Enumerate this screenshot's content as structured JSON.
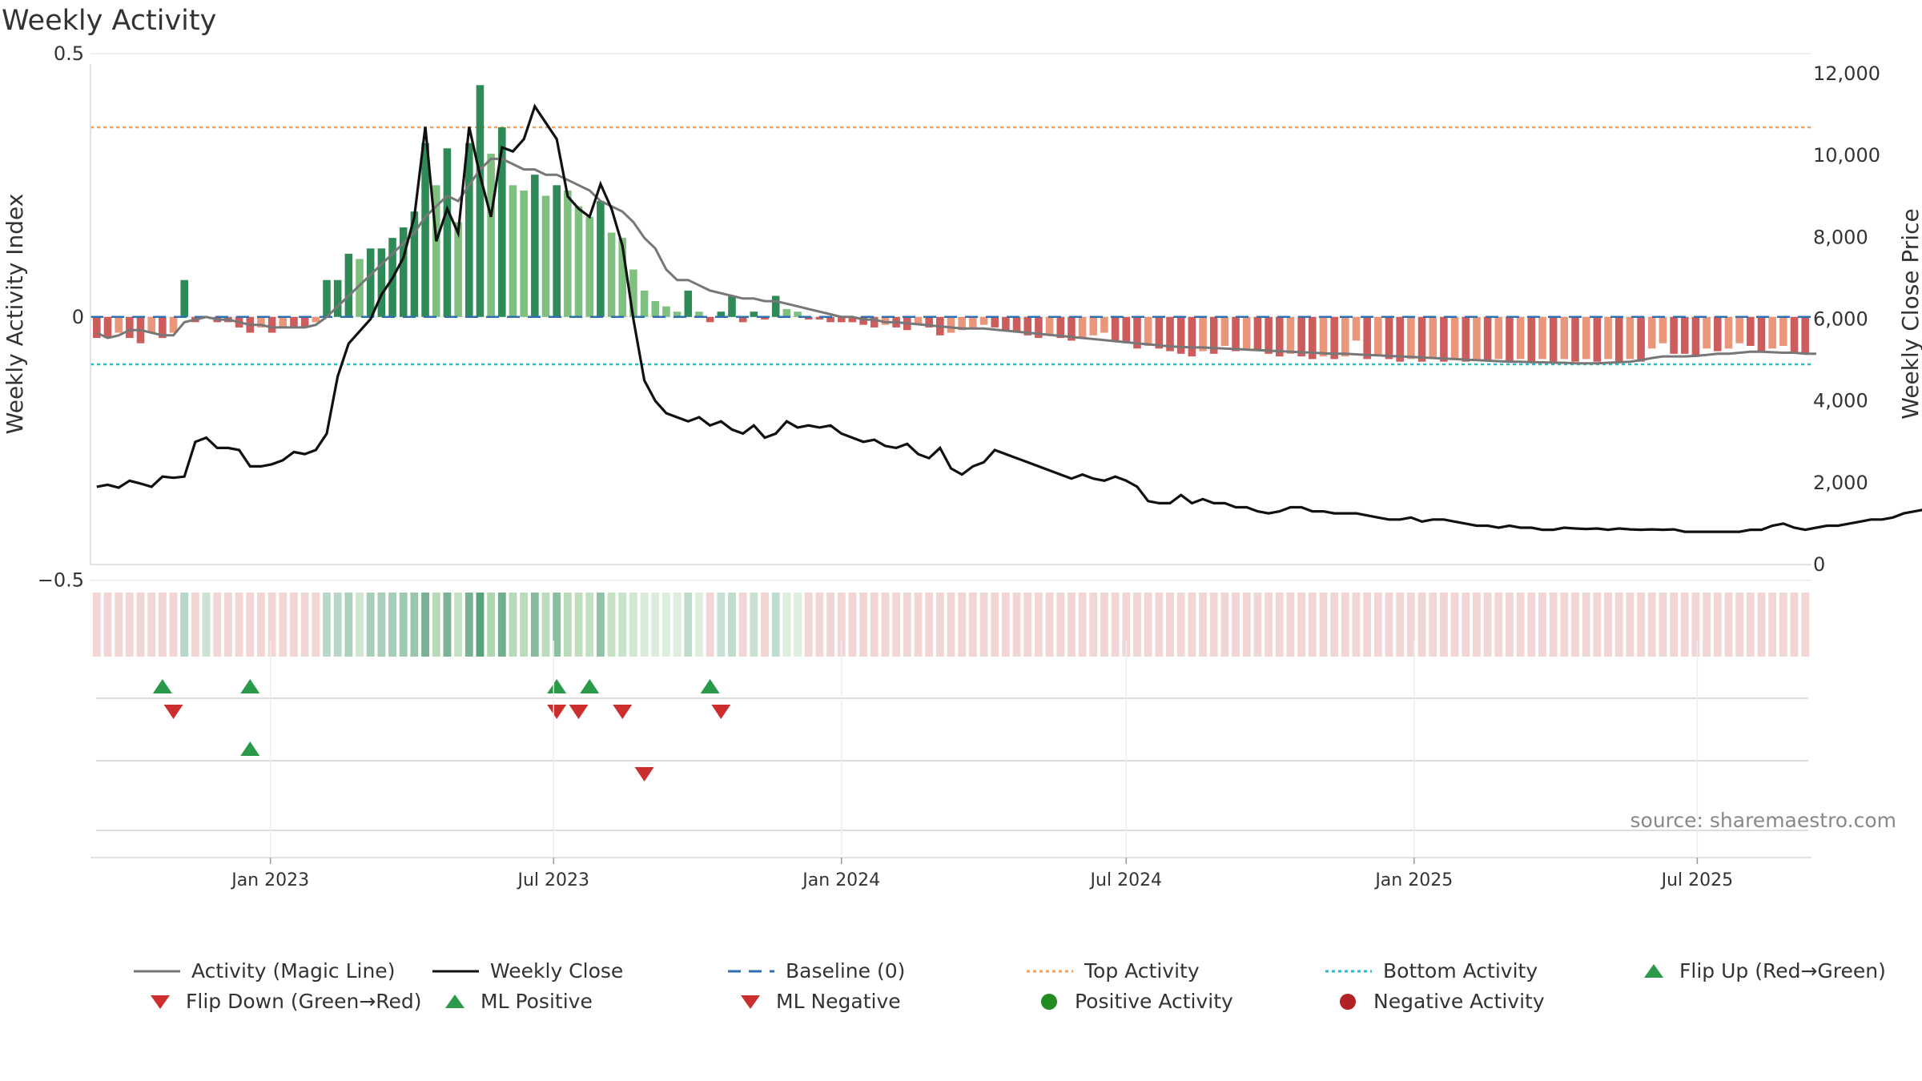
{
  "title": "Weekly Activity",
  "source": "source: sharemaestro.com",
  "colors": {
    "pos_dark": "#2e8b57",
    "pos_light": "#7fbf7f",
    "neg_dark": "#cd5c5c",
    "neg_light": "#e9967a",
    "magic": "#777777",
    "close": "#111111",
    "baseline": "#2f6fb0",
    "top": "#f0a060",
    "bottom": "#28b8cc",
    "flip_up": "#2a9a4a",
    "flip_down": "#cc2e2e"
  },
  "chart_data": {
    "type": "bar",
    "x_start": "2022-09-12",
    "x_interval_days": 7,
    "left_axis": {
      "label": "Weekly Activity Index",
      "ticks": [
        0.5,
        0,
        -0.5
      ],
      "tick_labels": [
        "0.5",
        "0",
        "−0.5"
      ],
      "ylim": [
        -0.47,
        0.48
      ]
    },
    "right_axis": {
      "label": "Weekly Close Price",
      "ticks": [
        0,
        2000,
        4000,
        6000,
        8000,
        10000,
        12000
      ],
      "tick_labels": [
        "0",
        "2,000",
        "4,000",
        "6,000",
        "8,000",
        "10,000",
        "12,000"
      ],
      "ylim": [
        0,
        12000
      ]
    },
    "x_ticks": [
      {
        "date": "2023-01-01",
        "label": "Jan 2023"
      },
      {
        "date": "2023-07-01",
        "label": "Jul 2023"
      },
      {
        "date": "2024-01-01",
        "label": "Jan 2024"
      },
      {
        "date": "2024-07-01",
        "label": "Jul 2024"
      },
      {
        "date": "2025-01-01",
        "label": "Jan 2025"
      },
      {
        "date": "2025-07-01",
        "label": "Jul 2025"
      }
    ],
    "top_activity": 0.36,
    "bottom_activity": -0.09,
    "activity": [
      -0.04,
      -0.04,
      -0.03,
      -0.04,
      -0.05,
      -0.03,
      -0.04,
      -0.03,
      0.07,
      -0.01,
      0.0,
      -0.01,
      -0.01,
      -0.02,
      -0.03,
      -0.02,
      -0.03,
      -0.02,
      -0.02,
      -0.02,
      -0.01,
      0.07,
      0.07,
      0.12,
      0.11,
      0.13,
      0.13,
      0.15,
      0.17,
      0.2,
      0.33,
      0.25,
      0.32,
      0.18,
      0.33,
      0.44,
      0.31,
      0.36,
      0.25,
      0.24,
      0.27,
      0.23,
      0.25,
      0.24,
      0.21,
      0.19,
      0.22,
      0.16,
      0.15,
      0.09,
      0.05,
      0.03,
      0.02,
      0.01,
      0.05,
      0.01,
      -0.01,
      0.01,
      0.04,
      -0.01,
      0.01,
      -0.005,
      0.04,
      0.015,
      0.01,
      -0.005,
      -0.005,
      -0.01,
      -0.01,
      -0.01,
      -0.015,
      -0.02,
      -0.015,
      -0.02,
      -0.025,
      -0.015,
      -0.02,
      -0.035,
      -0.03,
      -0.025,
      -0.02,
      -0.015,
      -0.02,
      -0.025,
      -0.03,
      -0.035,
      -0.04,
      -0.035,
      -0.04,
      -0.045,
      -0.04,
      -0.035,
      -0.03,
      -0.045,
      -0.05,
      -0.06,
      -0.055,
      -0.06,
      -0.065,
      -0.07,
      -0.075,
      -0.065,
      -0.07,
      -0.055,
      -0.065,
      -0.06,
      -0.065,
      -0.07,
      -0.075,
      -0.07,
      -0.075,
      -0.08,
      -0.075,
      -0.08,
      -0.075,
      -0.045,
      -0.08,
      -0.075,
      -0.08,
      -0.085,
      -0.08,
      -0.085,
      -0.08,
      -0.085,
      -0.08,
      -0.085,
      -0.08,
      -0.085,
      -0.08,
      -0.085,
      -0.08,
      -0.085,
      -0.08,
      -0.085,
      -0.08,
      -0.085,
      -0.08,
      -0.085,
      -0.08,
      -0.085,
      -0.08,
      -0.085,
      -0.06,
      -0.05,
      -0.07,
      -0.07,
      -0.075,
      -0.06,
      -0.065,
      -0.06,
      -0.05,
      -0.055,
      -0.065,
      -0.06,
      -0.055,
      -0.07,
      -0.07
    ],
    "magic_line": [
      -0.03,
      -0.04,
      -0.035,
      -0.025,
      -0.025,
      -0.03,
      -0.035,
      -0.035,
      -0.01,
      -0.005,
      0.0,
      -0.005,
      -0.005,
      -0.01,
      -0.015,
      -0.015,
      -0.02,
      -0.02,
      -0.02,
      -0.02,
      -0.015,
      0.0,
      0.02,
      0.04,
      0.06,
      0.08,
      0.1,
      0.12,
      0.14,
      0.16,
      0.19,
      0.21,
      0.23,
      0.22,
      0.25,
      0.28,
      0.3,
      0.3,
      0.29,
      0.28,
      0.28,
      0.27,
      0.27,
      0.26,
      0.25,
      0.24,
      0.22,
      0.21,
      0.2,
      0.18,
      0.15,
      0.13,
      0.09,
      0.07,
      0.07,
      0.06,
      0.05,
      0.045,
      0.04,
      0.035,
      0.035,
      0.03,
      0.03,
      0.025,
      0.02,
      0.015,
      0.01,
      0.005,
      0.0,
      0.0,
      -0.005,
      -0.005,
      -0.01,
      -0.01,
      -0.012,
      -0.014,
      -0.016,
      -0.018,
      -0.02,
      -0.022,
      -0.022,
      -0.022,
      -0.024,
      -0.026,
      -0.028,
      -0.03,
      -0.032,
      -0.034,
      -0.036,
      -0.038,
      -0.04,
      -0.042,
      -0.044,
      -0.046,
      -0.048,
      -0.05,
      -0.052,
      -0.054,
      -0.056,
      -0.057,
      -0.058,
      -0.058,
      -0.059,
      -0.06,
      -0.061,
      -0.062,
      -0.063,
      -0.064,
      -0.065,
      -0.066,
      -0.067,
      -0.068,
      -0.069,
      -0.07,
      -0.07,
      -0.071,
      -0.072,
      -0.073,
      -0.074,
      -0.075,
      -0.076,
      -0.077,
      -0.078,
      -0.079,
      -0.08,
      -0.081,
      -0.082,
      -0.083,
      -0.084,
      -0.085,
      -0.085,
      -0.086,
      -0.086,
      -0.087,
      -0.087,
      -0.088,
      -0.088,
      -0.088,
      -0.087,
      -0.086,
      -0.085,
      -0.082,
      -0.078,
      -0.075,
      -0.075,
      -0.075,
      -0.074,
      -0.072,
      -0.07,
      -0.07,
      -0.068,
      -0.066,
      -0.066,
      -0.067,
      -0.068,
      -0.068,
      -0.07,
      -0.07
    ],
    "weekly_close": [
      1900,
      1950,
      1880,
      2050,
      1980,
      1900,
      2150,
      2120,
      2150,
      3000,
      3100,
      2850,
      2850,
      2800,
      2400,
      2400,
      2450,
      2550,
      2750,
      2700,
      2800,
      3200,
      4600,
      5400,
      5700,
      6000,
      6600,
      7000,
      7500,
      8500,
      10700,
      7900,
      8700,
      8100,
      10700,
      9500,
      8500,
      10200,
      10100,
      10400,
      11200,
      10800,
      10400,
      9000,
      8700,
      8500,
      9300,
      8700,
      7800,
      6000,
      4500,
      4000,
      3700,
      3600,
      3500,
      3600,
      3400,
      3500,
      3300,
      3200,
      3400,
      3100,
      3200,
      3500,
      3350,
      3400,
      3350,
      3400,
      3200,
      3100,
      3000,
      3050,
      2900,
      2850,
      2950,
      2700,
      2600,
      2850,
      2350,
      2200,
      2400,
      2500,
      2800,
      2700,
      2600,
      2500,
      2400,
      2300,
      2200,
      2100,
      2200,
      2100,
      2050,
      2150,
      2050,
      1900,
      1550,
      1500,
      1500,
      1700,
      1500,
      1600,
      1500,
      1500,
      1400,
      1400,
      1300,
      1250,
      1300,
      1400,
      1400,
      1300,
      1300,
      1250,
      1250,
      1250,
      1200,
      1150,
      1100,
      1100,
      1150,
      1050,
      1100,
      1100,
      1050,
      1000,
      950,
      950,
      900,
      950,
      900,
      900,
      850,
      850,
      900,
      880,
      870,
      880,
      850,
      880,
      860,
      850,
      860,
      850,
      860,
      800,
      800,
      800,
      800,
      800,
      800,
      850,
      850,
      950,
      1000,
      900,
      850,
      900,
      950,
      950,
      1000,
      1050,
      1100,
      1100,
      1150,
      1250,
      1300,
      1350,
      1450,
      1450,
      1500
    ],
    "flip_up_weeks": [
      6,
      14,
      42,
      45,
      56
    ],
    "flip_down_weeks": [
      7,
      42,
      44,
      48,
      57
    ],
    "ml_positive_weeks": [
      14
    ],
    "ml_negative_weeks": [
      50
    ]
  },
  "legend": {
    "items": [
      {
        "label": "Activity (Magic Line)"
      },
      {
        "label": "Weekly Close"
      },
      {
        "label": "Baseline (0)"
      },
      {
        "label": "Top Activity"
      },
      {
        "label": "Bottom Activity"
      },
      {
        "label": "Flip Up (Red→Green)"
      },
      {
        "label": "Flip Down (Green→Red)"
      },
      {
        "label": "ML Positive"
      },
      {
        "label": "ML Negative"
      },
      {
        "label": "Positive Activity"
      },
      {
        "label": "Negative Activity"
      }
    ]
  }
}
